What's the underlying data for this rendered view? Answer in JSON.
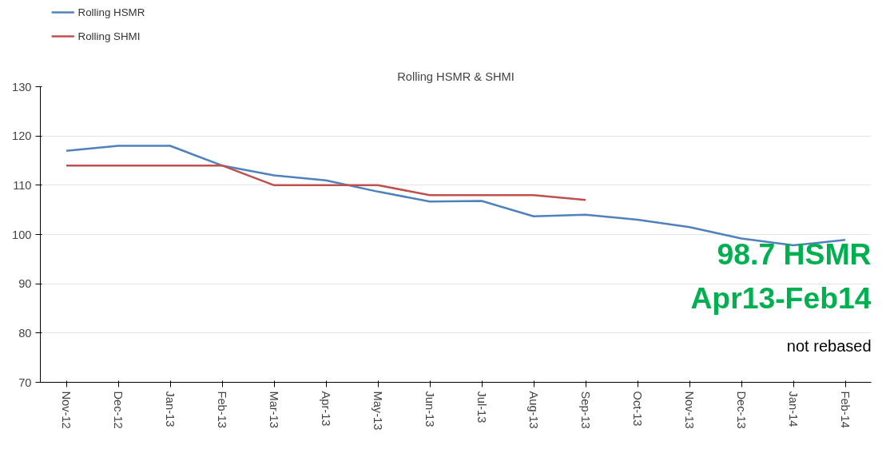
{
  "chart_data": {
    "type": "line",
    "title": "Rolling HSMR & SHMI",
    "categories": [
      "Nov-12",
      "Dec-12",
      "Jan-13",
      "Feb-13",
      "Mar-13",
      "Apr-13",
      "May-13",
      "Jun-13",
      "Jul-13",
      "Aug-13",
      "Sep-13",
      "Oct-13",
      "Nov-13",
      "Dec-13",
      "Jan-14",
      "Feb-14"
    ],
    "series": [
      {
        "name": "Rolling HSMR",
        "color": "#4f81bd",
        "values": [
          117,
          118,
          118,
          114,
          112,
          111,
          108.7,
          106.7,
          106.8,
          103.7,
          104,
          103,
          101.5,
          99.2,
          97.8,
          98.9
        ]
      },
      {
        "name": "Rolling SHMI",
        "color": "#c0504d",
        "values": [
          114,
          114,
          114,
          114,
          110,
          110,
          110,
          108,
          108,
          108,
          107,
          null,
          null,
          null,
          null,
          null
        ]
      }
    ],
    "ylim": [
      70,
      130
    ],
    "yticks": [
      70,
      80,
      90,
      100,
      110,
      120,
      130
    ],
    "grid": "y",
    "legend": "top left",
    "marker": "none",
    "line_style": "solid",
    "annotations": [
      "98.7 HSMR",
      "Apr13-Feb14",
      "not rebased"
    ]
  }
}
